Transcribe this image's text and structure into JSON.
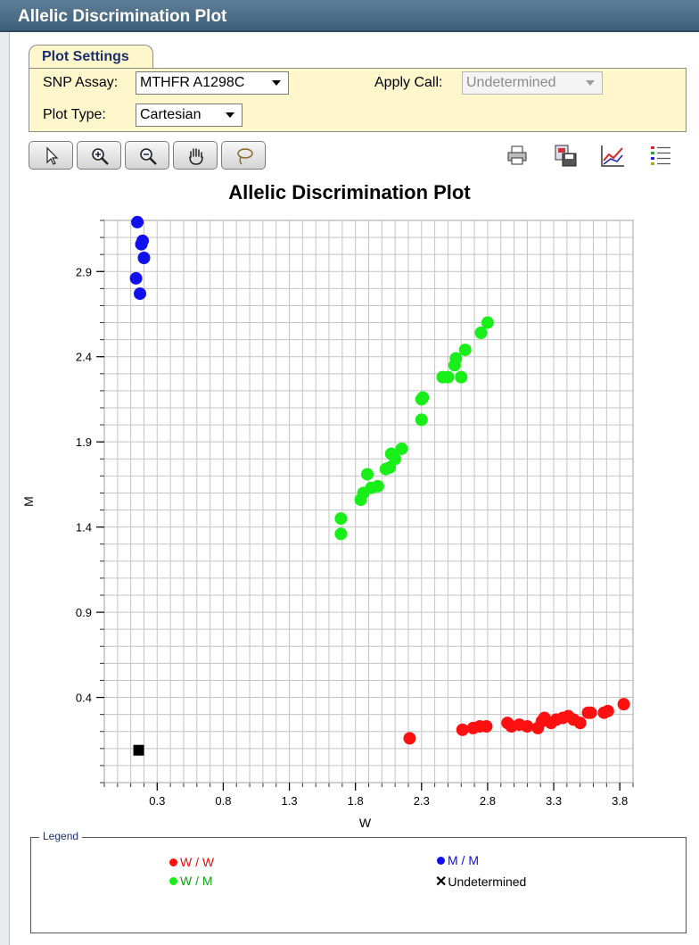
{
  "window": {
    "title": "Allelic Discrimination Plot"
  },
  "settings": {
    "tab_label": "Plot Settings",
    "snp_label": "SNP Assay:",
    "snp_value": "MTHFR A1298C",
    "apply_label": "Apply Call:",
    "apply_value": "Undetermined",
    "plot_type_label": "Plot Type:",
    "plot_type_value": "Cartesian"
  },
  "toolbar": {
    "left_tools": [
      "select-arrow-icon",
      "zoom-in-icon",
      "zoom-out-icon",
      "pan-hand-icon",
      "lasso-icon"
    ],
    "right_tools": [
      "print-icon",
      "save-image-icon",
      "line-chart-icon",
      "legend-list-icon"
    ]
  },
  "legend": {
    "title": "Legend",
    "items": [
      {
        "label": "W / W",
        "color": "#ff1010"
      },
      {
        "label": "M / M",
        "color": "#1010ee"
      },
      {
        "label": "W / M",
        "color": "#18ee18"
      },
      {
        "label": "Undetermined",
        "color": "#000000"
      }
    ]
  },
  "chart_data": {
    "type": "scatter",
    "title": "Allelic Discrimination Plot",
    "xlabel": "W",
    "ylabel": "M",
    "xlim": [
      -0.1,
      3.9
    ],
    "ylim": [
      -0.1,
      3.2
    ],
    "xticks": [
      "0.3",
      "0.8",
      "1.3",
      "1.8",
      "2.3",
      "2.8",
      "3.3",
      "3.8"
    ],
    "yticks": [
      "0.4",
      "0.9",
      "1.4",
      "1.9",
      "2.4",
      "2.9"
    ],
    "grid": true,
    "series": [
      {
        "name": "M / M",
        "color": "#1010ee",
        "marker": "circle",
        "points": [
          [
            0.15,
            3.19
          ],
          [
            0.19,
            3.08
          ],
          [
            0.18,
            3.06
          ],
          [
            0.2,
            2.98
          ],
          [
            0.14,
            2.86
          ],
          [
            0.17,
            2.77
          ]
        ]
      },
      {
        "name": "W / M",
        "color": "#18ee18",
        "marker": "circle",
        "points": [
          [
            1.69,
            1.45
          ],
          [
            1.69,
            1.36
          ],
          [
            1.84,
            1.56
          ],
          [
            1.86,
            1.6
          ],
          [
            1.89,
            1.71
          ],
          [
            1.92,
            1.63
          ],
          [
            1.97,
            1.64
          ],
          [
            2.03,
            1.74
          ],
          [
            2.06,
            1.75
          ],
          [
            2.07,
            1.83
          ],
          [
            2.1,
            1.8
          ],
          [
            2.15,
            1.86
          ],
          [
            2.3,
            2.15
          ],
          [
            2.31,
            2.16
          ],
          [
            2.3,
            2.03
          ],
          [
            2.46,
            2.28
          ],
          [
            2.5,
            2.28
          ],
          [
            2.55,
            2.35
          ],
          [
            2.56,
            2.39
          ],
          [
            2.6,
            2.28
          ],
          [
            2.63,
            2.44
          ],
          [
            2.75,
            2.54
          ],
          [
            2.8,
            2.6
          ]
        ]
      },
      {
        "name": "W / W",
        "color": "#ff1010",
        "marker": "circle",
        "points": [
          [
            2.21,
            0.16
          ],
          [
            2.61,
            0.21
          ],
          [
            2.69,
            0.22
          ],
          [
            2.74,
            0.23
          ],
          [
            2.79,
            0.23
          ],
          [
            2.95,
            0.25
          ],
          [
            2.98,
            0.23
          ],
          [
            3.04,
            0.24
          ],
          [
            3.1,
            0.23
          ],
          [
            3.18,
            0.22
          ],
          [
            3.21,
            0.26
          ],
          [
            3.23,
            0.28
          ],
          [
            3.28,
            0.25
          ],
          [
            3.32,
            0.27
          ],
          [
            3.37,
            0.28
          ],
          [
            3.41,
            0.29
          ],
          [
            3.45,
            0.27
          ],
          [
            3.5,
            0.25
          ],
          [
            3.56,
            0.31
          ],
          [
            3.58,
            0.31
          ],
          [
            3.68,
            0.31
          ],
          [
            3.71,
            0.32
          ],
          [
            3.83,
            0.36
          ]
        ]
      },
      {
        "name": "Undetermined",
        "color": "#000000",
        "marker": "square",
        "points": [
          [
            0.16,
            0.09
          ]
        ]
      }
    ]
  }
}
